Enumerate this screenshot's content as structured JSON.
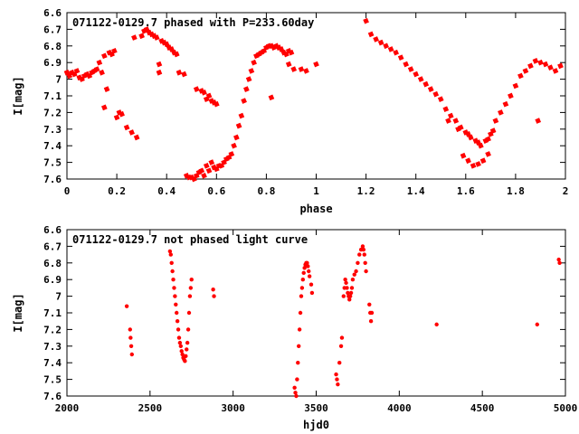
{
  "chart_data": [
    {
      "type": "scatter",
      "title": "071122-0129.7 phased with P=233.60day",
      "xlabel": "phase",
      "ylabel": "I[mag]",
      "xlim": [
        0,
        2
      ],
      "ylim": [
        6.6,
        7.6
      ],
      "y_inverted": true,
      "grid": false,
      "legend": "none",
      "xticks": [
        "0",
        "0.2",
        "0.4",
        "0.6",
        "0.8",
        "1",
        "1.2",
        "1.4",
        "1.6",
        "1.8",
        "2"
      ],
      "yticks": [
        "6.6",
        "6.7",
        "6.8",
        "6.9",
        "7",
        "7.1",
        "7.2",
        "7.3",
        "7.4",
        "7.5",
        "7.6"
      ],
      "series": [
        {
          "color": "#ff0000",
          "marker": "star",
          "points": [
            [
              0.0,
              6.96
            ],
            [
              0.01,
              6.98
            ],
            [
              0.02,
              6.96
            ],
            [
              0.03,
              6.97
            ],
            [
              0.04,
              6.95
            ],
            [
              0.05,
              6.99
            ],
            [
              0.06,
              7.0
            ],
            [
              0.07,
              6.98
            ],
            [
              0.08,
              6.97
            ],
            [
              0.09,
              6.98
            ],
            [
              0.1,
              6.96
            ],
            [
              0.11,
              6.95
            ],
            [
              0.12,
              6.94
            ],
            [
              0.13,
              6.9
            ],
            [
              0.14,
              6.96
            ],
            [
              0.15,
              6.86
            ],
            [
              0.15,
              7.17
            ],
            [
              0.16,
              7.06
            ],
            [
              0.17,
              6.84
            ],
            [
              0.18,
              6.85
            ],
            [
              0.19,
              6.83
            ],
            [
              0.2,
              7.23
            ],
            [
              0.21,
              7.2
            ],
            [
              0.22,
              7.21
            ],
            [
              0.24,
              7.29
            ],
            [
              0.26,
              7.32
            ],
            [
              0.27,
              6.75
            ],
            [
              0.28,
              7.35
            ],
            [
              0.3,
              6.74
            ],
            [
              0.31,
              6.71
            ],
            [
              0.32,
              6.7
            ],
            [
              0.33,
              6.72
            ],
            [
              0.34,
              6.73
            ],
            [
              0.35,
              6.74
            ],
            [
              0.36,
              6.75
            ],
            [
              0.37,
              6.91
            ],
            [
              0.37,
              6.96
            ],
            [
              0.38,
              6.77
            ],
            [
              0.39,
              6.78
            ],
            [
              0.4,
              6.79
            ],
            [
              0.41,
              6.81
            ],
            [
              0.42,
              6.82
            ],
            [
              0.43,
              6.84
            ],
            [
              0.44,
              6.85
            ],
            [
              0.45,
              6.96
            ],
            [
              0.47,
              6.97
            ],
            [
              0.48,
              7.58
            ],
            [
              0.49,
              7.59
            ],
            [
              0.5,
              7.59
            ],
            [
              0.51,
              7.6
            ],
            [
              0.52,
              7.58
            ],
            [
              0.53,
              7.56
            ],
            [
              0.54,
              7.55
            ],
            [
              0.55,
              7.58
            ],
            [
              0.56,
              7.52
            ],
            [
              0.57,
              7.55
            ],
            [
              0.58,
              7.5
            ],
            [
              0.59,
              7.53
            ],
            [
              0.6,
              7.54
            ],
            [
              0.61,
              7.52
            ],
            [
              0.62,
              7.52
            ],
            [
              0.63,
              7.5
            ],
            [
              0.64,
              7.48
            ],
            [
              0.65,
              7.47
            ],
            [
              0.66,
              7.45
            ],
            [
              0.67,
              7.4
            ],
            [
              0.68,
              7.35
            ],
            [
              0.69,
              7.28
            ],
            [
              0.7,
              7.22
            ],
            [
              0.71,
              7.13
            ],
            [
              0.72,
              7.06
            ],
            [
              0.73,
              7.0
            ],
            [
              0.74,
              6.95
            ],
            [
              0.75,
              6.9
            ],
            [
              0.76,
              6.86
            ],
            [
              0.77,
              6.85
            ],
            [
              0.78,
              6.84
            ],
            [
              0.79,
              6.83
            ],
            [
              0.8,
              6.81
            ],
            [
              0.81,
              6.8
            ],
            [
              0.82,
              6.8
            ],
            [
              0.83,
              6.81
            ],
            [
              0.84,
              6.8
            ],
            [
              0.85,
              6.81
            ],
            [
              0.86,
              6.82
            ],
            [
              0.87,
              6.84
            ],
            [
              0.88,
              6.85
            ],
            [
              0.89,
              6.83
            ],
            [
              0.9,
              6.84
            ],
            [
              0.52,
              7.06
            ],
            [
              0.54,
              7.07
            ],
            [
              0.55,
              7.08
            ],
            [
              0.56,
              7.12
            ],
            [
              0.57,
              7.1
            ],
            [
              0.58,
              7.13
            ],
            [
              0.59,
              7.14
            ],
            [
              0.6,
              7.15
            ],
            [
              0.82,
              7.11
            ],
            [
              0.89,
              6.91
            ],
            [
              0.91,
              6.94
            ],
            [
              0.94,
              6.94
            ],
            [
              0.96,
              6.95
            ],
            [
              1.0,
              6.91
            ],
            [
              1.2,
              6.65
            ],
            [
              1.22,
              6.73
            ],
            [
              1.24,
              6.76
            ],
            [
              1.26,
              6.78
            ],
            [
              1.28,
              6.8
            ],
            [
              1.3,
              6.82
            ],
            [
              1.32,
              6.84
            ],
            [
              1.34,
              6.87
            ],
            [
              1.36,
              6.91
            ],
            [
              1.38,
              6.94
            ],
            [
              1.4,
              6.97
            ],
            [
              1.42,
              7.0
            ],
            [
              1.44,
              7.03
            ],
            [
              1.46,
              7.06
            ],
            [
              1.48,
              7.09
            ],
            [
              1.5,
              7.12
            ],
            [
              1.52,
              7.18
            ],
            [
              1.54,
              7.22
            ],
            [
              1.56,
              7.25
            ],
            [
              1.58,
              7.29
            ],
            [
              1.6,
              7.32
            ],
            [
              1.62,
              7.35
            ],
            [
              1.64,
              7.37
            ],
            [
              1.66,
              7.4
            ],
            [
              1.68,
              7.37
            ],
            [
              1.7,
              7.33
            ],
            [
              1.72,
              7.25
            ],
            [
              1.74,
              7.2
            ],
            [
              1.76,
              7.15
            ],
            [
              1.78,
              7.1
            ],
            [
              1.8,
              7.04
            ],
            [
              1.82,
              6.98
            ],
            [
              1.84,
              6.95
            ],
            [
              1.86,
              6.92
            ],
            [
              1.88,
              6.89
            ],
            [
              1.9,
              6.9
            ],
            [
              1.92,
              6.91
            ],
            [
              1.94,
              6.93
            ],
            [
              1.96,
              6.95
            ],
            [
              1.98,
              6.92
            ],
            [
              1.59,
              7.46
            ],
            [
              1.61,
              7.49
            ],
            [
              1.63,
              7.52
            ],
            [
              1.65,
              7.51
            ],
            [
              1.67,
              7.49
            ],
            [
              1.69,
              7.45
            ],
            [
              1.89,
              7.25
            ],
            [
              1.53,
              7.25
            ],
            [
              1.57,
              7.3
            ],
            [
              1.61,
              7.33
            ],
            [
              1.65,
              7.38
            ],
            [
              1.69,
              7.36
            ],
            [
              1.71,
              7.31
            ]
          ]
        }
      ]
    },
    {
      "type": "scatter",
      "title": "071122-0129.7 not phased light curve",
      "xlabel": "hjd0",
      "ylabel": "I[mag]",
      "xlim": [
        2000,
        5000
      ],
      "ylim": [
        6.6,
        7.6
      ],
      "y_inverted": true,
      "grid": false,
      "legend": "none",
      "xticks": [
        "2000",
        "2500",
        "3000",
        "3500",
        "4000",
        "4500",
        "5000"
      ],
      "yticks": [
        "6.6",
        "6.7",
        "6.8",
        "6.9",
        "7",
        "7.1",
        "7.2",
        "7.3",
        "7.4",
        "7.5",
        "7.6"
      ],
      "series": [
        {
          "color": "#ff0000",
          "marker": "dot",
          "points": [
            [
              2360,
              7.06
            ],
            [
              2380,
              7.2
            ],
            [
              2383,
              7.25
            ],
            [
              2387,
              7.3
            ],
            [
              2391,
              7.35
            ],
            [
              2620,
              6.73
            ],
            [
              2625,
              6.75
            ],
            [
              2630,
              6.8
            ],
            [
              2635,
              6.85
            ],
            [
              2640,
              6.9
            ],
            [
              2645,
              6.95
            ],
            [
              2650,
              7.0
            ],
            [
              2655,
              7.05
            ],
            [
              2660,
              7.1
            ],
            [
              2665,
              7.15
            ],
            [
              2670,
              7.2
            ],
            [
              2675,
              7.25
            ],
            [
              2680,
              7.28
            ],
            [
              2685,
              7.3
            ],
            [
              2690,
              7.33
            ],
            [
              2695,
              7.35
            ],
            [
              2700,
              7.37
            ],
            [
              2705,
              7.38
            ],
            [
              2710,
              7.39
            ],
            [
              2715,
              7.36
            ],
            [
              2720,
              7.32
            ],
            [
              2725,
              7.28
            ],
            [
              2730,
              7.2
            ],
            [
              2735,
              7.1
            ],
            [
              2740,
              7.0
            ],
            [
              2745,
              6.95
            ],
            [
              2750,
              6.9
            ],
            [
              2880,
              6.96
            ],
            [
              2885,
              7.0
            ],
            [
              3370,
              7.55
            ],
            [
              3375,
              7.58
            ],
            [
              3380,
              7.6
            ],
            [
              3385,
              7.5
            ],
            [
              3390,
              7.4
            ],
            [
              3395,
              7.3
            ],
            [
              3400,
              7.2
            ],
            [
              3405,
              7.1
            ],
            [
              3410,
              7.0
            ],
            [
              3415,
              6.95
            ],
            [
              3420,
              6.9
            ],
            [
              3425,
              6.86
            ],
            [
              3430,
              6.83
            ],
            [
              3435,
              6.81
            ],
            [
              3440,
              6.8
            ],
            [
              3445,
              6.8
            ],
            [
              3450,
              6.82
            ],
            [
              3455,
              6.85
            ],
            [
              3460,
              6.88
            ],
            [
              3470,
              6.93
            ],
            [
              3475,
              6.98
            ],
            [
              3620,
              7.47
            ],
            [
              3625,
              7.5
            ],
            [
              3630,
              7.53
            ],
            [
              3640,
              7.4
            ],
            [
              3650,
              7.3
            ],
            [
              3655,
              7.25
            ],
            [
              3665,
              7.0
            ],
            [
              3670,
              6.95
            ],
            [
              3675,
              6.9
            ],
            [
              3680,
              6.92
            ],
            [
              3685,
              6.95
            ],
            [
              3690,
              6.98
            ],
            [
              3695,
              7.0
            ],
            [
              3700,
              7.02
            ],
            [
              3705,
              7.0
            ],
            [
              3710,
              6.98
            ],
            [
              3715,
              6.95
            ],
            [
              3720,
              6.9
            ],
            [
              3730,
              6.87
            ],
            [
              3740,
              6.85
            ],
            [
              3750,
              6.8
            ],
            [
              3760,
              6.75
            ],
            [
              3770,
              6.72
            ],
            [
              3780,
              6.7
            ],
            [
              3785,
              6.72
            ],
            [
              3790,
              6.75
            ],
            [
              3795,
              6.8
            ],
            [
              3800,
              6.85
            ],
            [
              3820,
              7.05
            ],
            [
              3825,
              7.1
            ],
            [
              3830,
              7.15
            ],
            [
              3835,
              7.1
            ],
            [
              4225,
              7.17
            ],
            [
              4830,
              7.17
            ],
            [
              4960,
              6.78
            ],
            [
              4965,
              6.8
            ]
          ]
        }
      ]
    }
  ]
}
